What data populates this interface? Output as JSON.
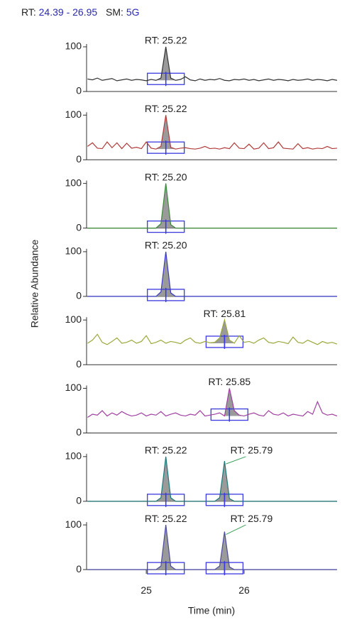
{
  "header": {
    "rt_label": "RT:",
    "rt_range": "24.39 - 26.95",
    "sm_label": "SM:",
    "sm_value": "5G"
  },
  "ylabel": "Relative Abundance",
  "xlabel": "Time (min)",
  "chart_data": [
    {
      "type": "line",
      "xlim": [
        24.39,
        26.95
      ],
      "ylim": [
        0,
        100
      ],
      "yticks": [
        0,
        100
      ],
      "annotations": [
        "RT: 25.22"
      ],
      "x": [
        24.4,
        24.45,
        24.5,
        24.55,
        24.6,
        24.65,
        24.7,
        24.75,
        24.8,
        24.85,
        24.9,
        24.95,
        25,
        25.05,
        25.1,
        25.15,
        25.2,
        25.25,
        25.3,
        25.35,
        25.4,
        25.45,
        25.5,
        25.55,
        25.6,
        25.65,
        25.7,
        25.75,
        25.8,
        25.85,
        25.9,
        25.95,
        26,
        26.05,
        26.1,
        26.15,
        26.2,
        26.25,
        26.3,
        26.35,
        26.4,
        26.45,
        26.5,
        26.55,
        26.6,
        26.65,
        26.7,
        26.75,
        26.8,
        26.85,
        26.9,
        26.95
      ],
      "series": [
        {
          "color": "#333333",
          "values": [
            28,
            26,
            30,
            25,
            27,
            29,
            24,
            26,
            28,
            25,
            27,
            26,
            24,
            27,
            25,
            30,
            100,
            30,
            25,
            27,
            33,
            26,
            24,
            28,
            25,
            27,
            26,
            29,
            25,
            24,
            27,
            26,
            28,
            25,
            27,
            24,
            26,
            28,
            25,
            27,
            26,
            24,
            27,
            25,
            26,
            28,
            25,
            27,
            26,
            24,
            27,
            25
          ]
        }
      ]
    },
    {
      "type": "line",
      "xlim": [
        24.39,
        26.95
      ],
      "ylim": [
        0,
        100
      ],
      "yticks": [
        0,
        100
      ],
      "annotations": [
        "RT: 25.22"
      ],
      "x": [
        24.4,
        24.45,
        24.5,
        24.55,
        24.6,
        24.65,
        24.7,
        24.75,
        24.8,
        24.85,
        24.9,
        24.95,
        25,
        25.05,
        25.1,
        25.15,
        25.2,
        25.25,
        25.3,
        25.35,
        25.4,
        25.45,
        25.5,
        25.55,
        25.6,
        25.65,
        25.7,
        25.75,
        25.8,
        25.85,
        25.9,
        25.95,
        26,
        26.05,
        26.1,
        26.15,
        26.2,
        26.25,
        26.3,
        26.35,
        26.4,
        26.45,
        26.5,
        26.55,
        26.6,
        26.65,
        26.7,
        26.75,
        26.8,
        26.85,
        26.9,
        26.95
      ],
      "series": [
        {
          "color": "#b03a3a",
          "values": [
            30,
            38,
            26,
            25,
            40,
            27,
            38,
            25,
            37,
            26,
            28,
            25,
            40,
            26,
            24,
            30,
            100,
            28,
            24,
            26,
            27,
            25,
            24,
            26,
            30,
            25,
            26,
            24,
            27,
            25,
            38,
            26,
            25,
            35,
            24,
            26,
            38,
            25,
            27,
            40,
            26,
            25,
            24,
            36,
            25,
            27,
            24,
            26,
            25,
            30,
            25,
            26
          ]
        }
      ]
    },
    {
      "type": "line",
      "xlim": [
        24.39,
        26.95
      ],
      "ylim": [
        0,
        100
      ],
      "yticks": [
        0,
        100
      ],
      "annotations": [
        "RT: 25.20"
      ],
      "x": [
        24.4,
        24.45,
        24.5,
        24.55,
        24.6,
        24.65,
        24.7,
        24.75,
        24.8,
        24.85,
        24.9,
        24.95,
        25,
        25.05,
        25.1,
        25.15,
        25.2,
        25.25,
        25.3,
        25.35,
        25.4,
        25.45,
        25.5,
        25.55,
        25.6,
        25.65,
        25.7,
        25.75,
        25.8,
        25.85,
        25.9,
        25.95,
        26,
        26.05,
        26.1,
        26.15,
        26.2,
        26.25,
        26.3,
        26.35,
        26.4,
        26.45,
        26.5,
        26.55,
        26.6,
        26.65,
        26.7,
        26.75,
        26.8,
        26.85,
        26.9,
        26.95
      ],
      "series": [
        {
          "color": "#3a8a3a",
          "values": [
            0,
            0,
            0,
            0,
            0,
            0,
            0,
            0,
            0,
            0,
            0,
            0,
            0,
            0,
            0,
            10,
            100,
            8,
            0,
            0,
            0,
            0,
            0,
            0,
            0,
            0,
            0,
            0,
            0,
            0,
            0,
            0,
            0,
            0,
            0,
            0,
            0,
            0,
            0,
            0,
            0,
            0,
            0,
            0,
            0,
            0,
            0,
            0,
            0,
            0,
            0,
            0
          ]
        }
      ]
    },
    {
      "type": "line",
      "xlim": [
        24.39,
        26.95
      ],
      "ylim": [
        0,
        100
      ],
      "yticks": [
        0,
        100
      ],
      "annotations": [
        "RT: 25.20"
      ],
      "x": [
        24.4,
        24.45,
        24.5,
        24.55,
        24.6,
        24.65,
        24.7,
        24.75,
        24.8,
        24.85,
        24.9,
        24.95,
        25,
        25.05,
        25.1,
        25.15,
        25.2,
        25.25,
        25.3,
        25.35,
        25.4,
        25.45,
        25.5,
        25.55,
        25.6,
        25.65,
        25.7,
        25.75,
        25.8,
        25.85,
        25.9,
        25.95,
        26,
        26.05,
        26.1,
        26.15,
        26.2,
        26.25,
        26.3,
        26.35,
        26.4,
        26.45,
        26.5,
        26.55,
        26.6,
        26.65,
        26.7,
        26.75,
        26.8,
        26.85,
        26.9,
        26.95
      ],
      "series": [
        {
          "color": "#3a3ac8",
          "values": [
            0,
            0,
            0,
            0,
            0,
            0,
            0,
            0,
            0,
            0,
            0,
            0,
            0,
            0,
            0,
            10,
            100,
            8,
            0,
            0,
            0,
            0,
            0,
            0,
            0,
            0,
            0,
            0,
            0,
            0,
            0,
            0,
            0,
            0,
            0,
            0,
            0,
            0,
            0,
            0,
            0,
            0,
            0,
            0,
            0,
            0,
            0,
            0,
            0,
            0,
            0,
            0
          ]
        }
      ]
    },
    {
      "type": "line",
      "xlim": [
        24.39,
        26.95
      ],
      "ylim": [
        0,
        100
      ],
      "yticks": [
        0,
        100
      ],
      "annotations": [
        "RT: 25.81"
      ],
      "x": [
        24.4,
        24.45,
        24.5,
        24.55,
        24.6,
        24.65,
        24.7,
        24.75,
        24.8,
        24.85,
        24.9,
        24.95,
        25,
        25.05,
        25.1,
        25.15,
        25.2,
        25.25,
        25.3,
        25.35,
        25.4,
        25.45,
        25.5,
        25.55,
        25.6,
        25.65,
        25.7,
        25.75,
        25.8,
        25.85,
        25.9,
        25.95,
        26,
        26.05,
        26.1,
        26.15,
        26.2,
        26.25,
        26.3,
        26.35,
        26.4,
        26.45,
        26.5,
        26.55,
        26.6,
        26.65,
        26.7,
        26.75,
        26.8,
        26.85,
        26.9,
        26.95
      ],
      "series": [
        {
          "color": "#9aa83a",
          "values": [
            48,
            55,
            68,
            50,
            45,
            52,
            60,
            48,
            50,
            55,
            48,
            52,
            65,
            47,
            50,
            55,
            48,
            52,
            50,
            47,
            55,
            60,
            50,
            48,
            52,
            49,
            50,
            60,
            100,
            55,
            48,
            65,
            50,
            52,
            48,
            55,
            60,
            50,
            48,
            52,
            50,
            47,
            62,
            50,
            48,
            55,
            50,
            45,
            52,
            48,
            50,
            46
          ]
        }
      ]
    },
    {
      "type": "line",
      "xlim": [
        24.39,
        26.95
      ],
      "ylim": [
        0,
        100
      ],
      "yticks": [
        0,
        100
      ],
      "annotations": [
        "RT: 25.85"
      ],
      "x": [
        24.4,
        24.45,
        24.5,
        24.55,
        24.6,
        24.65,
        24.7,
        24.75,
        24.8,
        24.85,
        24.9,
        24.95,
        25,
        25.05,
        25.1,
        25.15,
        25.2,
        25.25,
        25.3,
        25.35,
        25.4,
        25.45,
        25.5,
        25.55,
        25.6,
        25.65,
        25.7,
        25.75,
        25.8,
        25.85,
        25.9,
        25.95,
        26,
        26.05,
        26.1,
        26.15,
        26.2,
        26.25,
        26.3,
        26.35,
        26.4,
        26.45,
        26.5,
        26.55,
        26.6,
        26.65,
        26.7,
        26.75,
        26.8,
        26.85,
        26.9,
        26.95
      ],
      "series": [
        {
          "color": "#a040a0",
          "values": [
            35,
            42,
            40,
            50,
            38,
            45,
            40,
            48,
            42,
            38,
            40,
            45,
            38,
            42,
            40,
            48,
            38,
            42,
            45,
            40,
            38,
            42,
            40,
            50,
            38,
            40,
            42,
            45,
            38,
            100,
            50,
            40,
            38,
            42,
            45,
            40,
            38,
            50,
            42,
            40,
            45,
            38,
            42,
            40,
            38,
            48,
            42,
            70,
            45,
            40,
            42,
            38
          ]
        }
      ]
    },
    {
      "type": "line",
      "xlim": [
        24.39,
        26.95
      ],
      "ylim": [
        0,
        100
      ],
      "yticks": [
        0,
        100
      ],
      "annotations": [
        "RT: 25.22",
        "RT: 25.79"
      ],
      "x": [
        24.4,
        24.45,
        24.5,
        24.55,
        24.6,
        24.65,
        24.7,
        24.75,
        24.8,
        24.85,
        24.9,
        24.95,
        25,
        25.05,
        25.1,
        25.15,
        25.2,
        25.25,
        25.3,
        25.35,
        25.4,
        25.45,
        25.5,
        25.55,
        25.6,
        25.65,
        25.7,
        25.75,
        25.8,
        25.85,
        25.9,
        25.95,
        26,
        26.05,
        26.1,
        26.15,
        26.2,
        26.25,
        26.3,
        26.35,
        26.4,
        26.45,
        26.5,
        26.55,
        26.6,
        26.65,
        26.7,
        26.75,
        26.8,
        26.85,
        26.9,
        26.95
      ],
      "series": [
        {
          "color": "#1a7a7a",
          "values": [
            0,
            0,
            0,
            0,
            0,
            0,
            0,
            0,
            0,
            0,
            0,
            0,
            0,
            0,
            0,
            8,
            100,
            8,
            0,
            0,
            0,
            0,
            0,
            0,
            0,
            0,
            0,
            8,
            90,
            6,
            0,
            0,
            0,
            0,
            0,
            0,
            0,
            0,
            0,
            0,
            0,
            0,
            0,
            0,
            0,
            0,
            0,
            0,
            0,
            0,
            0,
            0
          ]
        }
      ]
    },
    {
      "type": "line",
      "xlim": [
        24.39,
        26.95
      ],
      "ylim": [
        0,
        100
      ],
      "yticks": [
        0,
        100
      ],
      "xticks": [
        25,
        26
      ],
      "annotations": [
        "RT: 25.22",
        "RT: 25.79"
      ],
      "x": [
        24.4,
        24.45,
        24.5,
        24.55,
        24.6,
        24.65,
        24.7,
        24.75,
        24.8,
        24.85,
        24.9,
        24.95,
        25,
        25.05,
        25.1,
        25.15,
        25.2,
        25.25,
        25.3,
        25.35,
        25.4,
        25.45,
        25.5,
        25.55,
        25.6,
        25.65,
        25.7,
        25.75,
        25.8,
        25.85,
        25.9,
        25.95,
        26,
        26.05,
        26.1,
        26.15,
        26.2,
        26.25,
        26.3,
        26.35,
        26.4,
        26.45,
        26.5,
        26.55,
        26.6,
        26.65,
        26.7,
        26.75,
        26.8,
        26.85,
        26.9,
        26.95
      ],
      "series": [
        {
          "color": "#4a4aa0",
          "values": [
            0,
            0,
            0,
            0,
            0,
            0,
            0,
            0,
            0,
            0,
            0,
            0,
            0,
            0,
            0,
            8,
            100,
            8,
            0,
            0,
            0,
            0,
            0,
            0,
            0,
            0,
            0,
            8,
            85,
            6,
            0,
            0,
            0,
            0,
            0,
            0,
            0,
            0,
            0,
            0,
            0,
            0,
            0,
            0,
            0,
            0,
            0,
            0,
            0,
            0,
            0,
            0
          ]
        }
      ]
    }
  ]
}
